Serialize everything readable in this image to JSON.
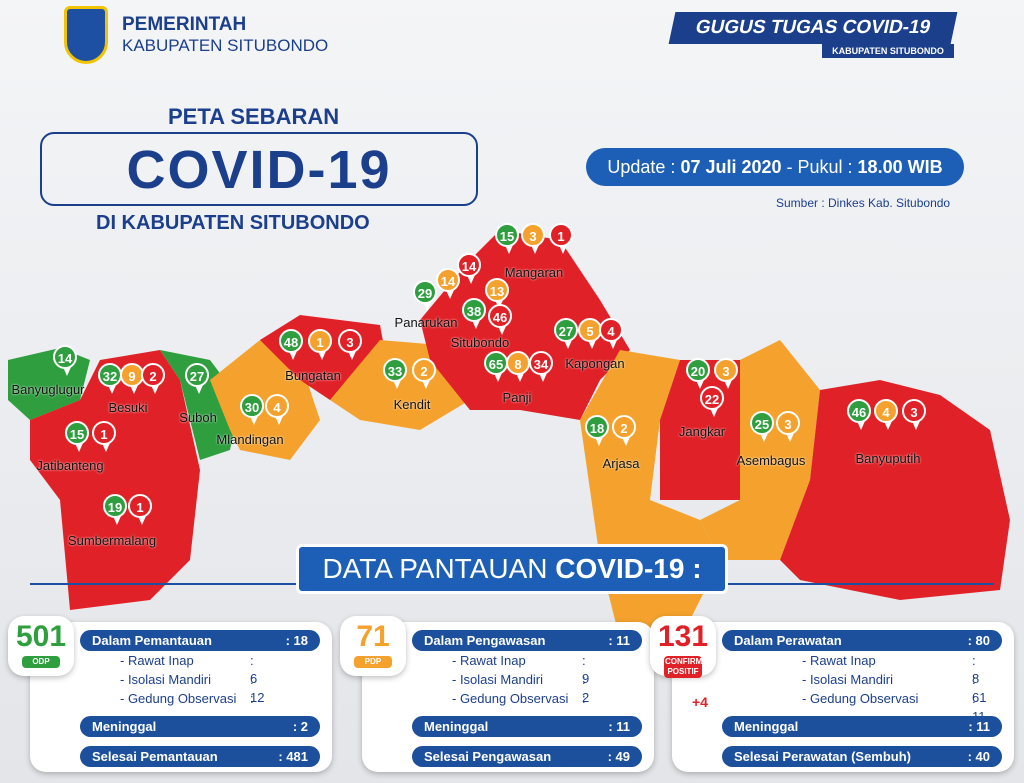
{
  "header": {
    "gov_line1": "PEMERINTAH",
    "gov_line2": "KABUPATEN SITUBONDO",
    "task_force": "GUGUS TUGAS COVID-19",
    "task_force_sub": "KABUPATEN SITUBONDO"
  },
  "title": {
    "line1": "PETA SEBARAN",
    "main": "COVID-19",
    "line3": "DI KABUPATEN SITUBONDO"
  },
  "update": {
    "prefix": "Update : ",
    "date": "07 Juli 2020",
    "mid": " - Pukul : ",
    "time": "18.00 WIB"
  },
  "source": "Sumber : Dinkes Kab. Situbondo",
  "colors": {
    "odp": "#2e9e3e",
    "pdp": "#f4a22d",
    "positive": "#e02228",
    "brand": "#1c3f8c"
  },
  "districts": [
    {
      "name": "Banyuglugur",
      "odp": "14"
    },
    {
      "name": "Besuki",
      "odp": "32",
      "pdp": "9",
      "pos": "2"
    },
    {
      "name": "Suboh",
      "odp": "27"
    },
    {
      "name": "Jatibanteng",
      "odp": "15",
      "pos": "1"
    },
    {
      "name": "Sumbermalang",
      "odp": "19",
      "pos": "1"
    },
    {
      "name": "Mlandingan",
      "odp": "30",
      "pdp": "4"
    },
    {
      "name": "Bungatan",
      "odp": "48",
      "pdp": "1",
      "pos": "3"
    },
    {
      "name": "Kendit",
      "odp": "33",
      "pdp": "2"
    },
    {
      "name": "Panarukan",
      "odp": "29",
      "pdp": "14",
      "pos": "14"
    },
    {
      "name": "Situbondo",
      "odp": "38",
      "pdp": "13",
      "pos": "46"
    },
    {
      "name": "Mangaran",
      "odp": "15",
      "pdp": "3",
      "pos": "1"
    },
    {
      "name": "Kapongan",
      "odp": "27",
      "pdp": "5",
      "pos": "4"
    },
    {
      "name": "Panji",
      "odp": "65",
      "pdp": "8",
      "pos": "34"
    },
    {
      "name": "Arjasa",
      "odp": "18",
      "pdp": "2"
    },
    {
      "name": "Jangkar",
      "odp": "20",
      "pdp": "3",
      "pos": "22"
    },
    {
      "name": "Asembagus",
      "odp": "25",
      "pdp": "3"
    },
    {
      "name": "Banyuputih",
      "odp": "46",
      "pdp": "4",
      "pos": "3"
    }
  ],
  "banner": {
    "light": "DATA PANTAUAN ",
    "bold": "COVID-19 :"
  },
  "cards": [
    {
      "total": "501",
      "tag": "ODP",
      "r1": "Dalam Pemantauan",
      "v1": ": 18",
      "subs": [
        [
          "- Rawat Inap",
          ": 6"
        ],
        [
          "- Isolasi Mandiri",
          ": 12"
        ],
        [
          "- Gedung Observasi",
          ": -"
        ]
      ],
      "r2": "Meninggal",
      "v2": ": 2",
      "r3": "Selesai Pemantauan",
      "v3": ": 481"
    },
    {
      "total": "71",
      "tag": "PDP",
      "r1": "Dalam Pengawasan",
      "v1": ": 11",
      "subs": [
        [
          "- Rawat Inap",
          ": 9"
        ],
        [
          "- Isolasi Mandiri",
          ": 2"
        ],
        [
          "- Gedung Observasi",
          ": -"
        ]
      ],
      "r2": "Meninggal",
      "v2": ": 11",
      "r3": "Selesai Pengawasan",
      "v3": ": 49"
    },
    {
      "total": "131",
      "tag": "CONFIRM POSITIF",
      "r1": "Dalam Perawatan",
      "v1": ": 80",
      "subs": [
        [
          "- Rawat Inap",
          ": 8"
        ],
        [
          "- Isolasi Mandiri",
          ": 61"
        ],
        [
          "- Gedung Observasi",
          ": 11"
        ]
      ],
      "r2": "Meninggal",
      "v2": ": 11",
      "r3": "Selesai Perawatan (Sembuh)",
      "v3": ": 40",
      "delta": "+4"
    }
  ]
}
